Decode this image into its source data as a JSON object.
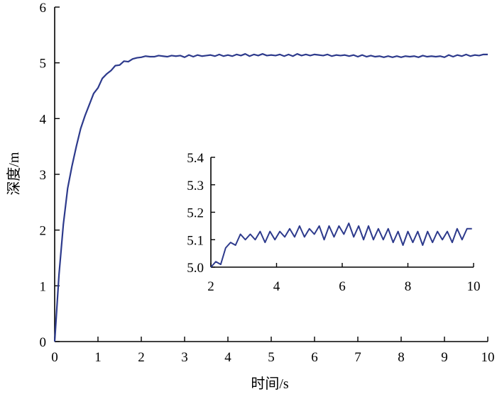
{
  "chart_data": [
    {
      "type": "line",
      "title": "",
      "xlabel": "时间/s",
      "ylabel": "深度/m",
      "xlim": [
        0,
        10
      ],
      "ylim": [
        0,
        6
      ],
      "x_ticks": [
        "0",
        "1",
        "2",
        "3",
        "4",
        "5",
        "6",
        "7",
        "8",
        "9",
        "10"
      ],
      "y_ticks": [
        "0",
        "1",
        "2",
        "3",
        "4",
        "5",
        "6"
      ],
      "grid": false,
      "line_color": "#2d3a8c",
      "series": [
        {
          "x": [
            0,
            0.1,
            0.2,
            0.3,
            0.4,
            0.5,
            0.6,
            0.7,
            0.8,
            0.9,
            1.0,
            1.1,
            1.2,
            1.3,
            1.4,
            1.5,
            1.6,
            1.7,
            1.8,
            1.9,
            2.0,
            2.1,
            2.2,
            2.3,
            2.4,
            2.5,
            2.6,
            2.7,
            2.8,
            2.9,
            3.0,
            3.1,
            3.2,
            3.3,
            3.4,
            3.5,
            3.6,
            3.7,
            3.8,
            3.9,
            4.0,
            4.1,
            4.2,
            4.3,
            4.4,
            4.5,
            4.6,
            4.7,
            4.8,
            4.9,
            5.0,
            5.1,
            5.2,
            5.3,
            5.4,
            5.5,
            5.6,
            5.7,
            5.8,
            5.9,
            6.0,
            6.1,
            6.2,
            6.3,
            6.4,
            6.5,
            6.6,
            6.7,
            6.8,
            6.9,
            7.0,
            7.1,
            7.2,
            7.3,
            7.4,
            7.5,
            7.6,
            7.7,
            7.8,
            7.9,
            8.0,
            8.1,
            8.2,
            8.3,
            8.4,
            8.5,
            8.6,
            8.7,
            8.8,
            8.9,
            9.0,
            9.1,
            9.2,
            9.3,
            9.4,
            9.5,
            9.6,
            9.7,
            9.8,
            9.9,
            10.0
          ],
          "values": [
            0,
            1.2,
            2.1,
            2.75,
            3.15,
            3.5,
            3.82,
            4.05,
            4.25,
            4.45,
            4.55,
            4.72,
            4.8,
            4.86,
            4.95,
            4.96,
            5.03,
            5.02,
            5.07,
            5.09,
            5.1,
            5.12,
            5.11,
            5.11,
            5.13,
            5.12,
            5.11,
            5.13,
            5.12,
            5.13,
            5.1,
            5.14,
            5.11,
            5.14,
            5.12,
            5.13,
            5.14,
            5.12,
            5.15,
            5.12,
            5.14,
            5.12,
            5.15,
            5.13,
            5.16,
            5.12,
            5.15,
            5.13,
            5.16,
            5.13,
            5.14,
            5.13,
            5.15,
            5.12,
            5.15,
            5.12,
            5.16,
            5.13,
            5.15,
            5.13,
            5.15,
            5.14,
            5.13,
            5.15,
            5.12,
            5.14,
            5.13,
            5.14,
            5.12,
            5.14,
            5.11,
            5.14,
            5.11,
            5.13,
            5.11,
            5.12,
            5.1,
            5.12,
            5.1,
            5.12,
            5.1,
            5.12,
            5.11,
            5.12,
            5.1,
            5.13,
            5.11,
            5.12,
            5.11,
            5.12,
            5.1,
            5.14,
            5.11,
            5.14,
            5.12,
            5.15,
            5.12,
            5.14,
            5.13,
            5.15,
            5.15
          ]
        }
      ]
    },
    {
      "type": "line",
      "title": "",
      "xlabel": "",
      "ylabel": "",
      "xlim": [
        2,
        10
      ],
      "ylim": [
        5.0,
        5.4
      ],
      "x_ticks": [
        "2",
        "4",
        "6",
        "8",
        "10"
      ],
      "y_ticks": [
        "5.0",
        "5.1",
        "5.2",
        "5.3",
        "5.4"
      ],
      "grid": false,
      "line_color": "#2d3a8c",
      "series": [
        {
          "x": [
            2.0,
            2.15,
            2.3,
            2.45,
            2.6,
            2.75,
            2.9,
            3.05,
            3.2,
            3.35,
            3.5,
            3.65,
            3.8,
            3.95,
            4.1,
            4.25,
            4.4,
            4.55,
            4.7,
            4.85,
            5.0,
            5.15,
            5.3,
            5.45,
            5.6,
            5.75,
            5.9,
            6.05,
            6.2,
            6.35,
            6.5,
            6.65,
            6.8,
            6.95,
            7.1,
            7.25,
            7.4,
            7.55,
            7.7,
            7.85,
            8.0,
            8.15,
            8.3,
            8.45,
            8.6,
            8.75,
            8.9,
            9.05,
            9.2,
            9.35,
            9.5,
            9.65,
            9.8,
            9.95
          ],
          "values": [
            5.0,
            5.02,
            5.01,
            5.07,
            5.09,
            5.08,
            5.12,
            5.1,
            5.12,
            5.1,
            5.13,
            5.09,
            5.13,
            5.1,
            5.13,
            5.11,
            5.14,
            5.11,
            5.15,
            5.11,
            5.14,
            5.12,
            5.15,
            5.1,
            5.15,
            5.11,
            5.15,
            5.12,
            5.16,
            5.11,
            5.15,
            5.1,
            5.15,
            5.1,
            5.14,
            5.1,
            5.14,
            5.09,
            5.13,
            5.08,
            5.13,
            5.09,
            5.13,
            5.08,
            5.13,
            5.09,
            5.13,
            5.1,
            5.13,
            5.09,
            5.14,
            5.1,
            5.14,
            5.14
          ]
        }
      ]
    }
  ]
}
